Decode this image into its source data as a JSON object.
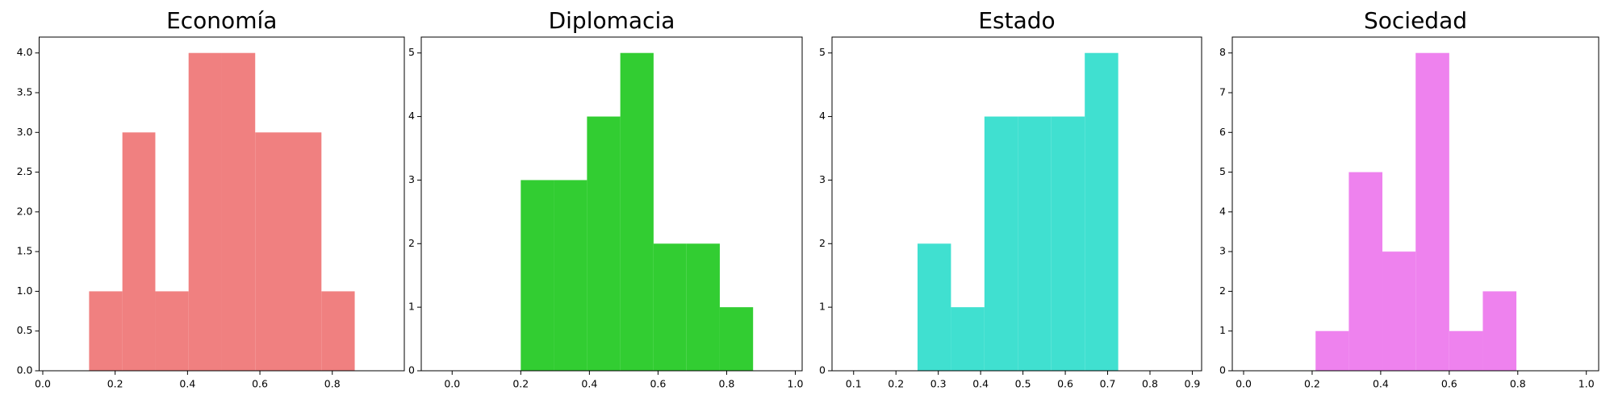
{
  "chart_data": [
    {
      "type": "histogram",
      "title": "Economía",
      "color": "#f08080",
      "bins": [
        0.128,
        0.22,
        0.311,
        0.403,
        0.495,
        0.587,
        0.679,
        0.77,
        0.862
      ],
      "values": [
        1,
        3,
        1,
        4,
        4,
        3,
        3,
        1
      ],
      "xlim": [
        -0.01,
        0.999
      ],
      "ylim": [
        0,
        4.2
      ],
      "xticks": [
        {
          "value": 0,
          "label": "0.0"
        },
        0.2,
        0.4,
        0.6,
        0.8
      ],
      "yticks": [
        {
          "value": 0,
          "label": "0.0"
        },
        0.5,
        {
          "value": 1,
          "label": "1.0"
        },
        1.5,
        {
          "value": 2,
          "label": "2.0"
        },
        2.5,
        {
          "value": 3,
          "label": "3.0"
        },
        3.5,
        {
          "value": 4,
          "label": "4.0"
        }
      ]
    },
    {
      "type": "histogram",
      "title": "Diplomacia",
      "color": "#32cd32",
      "bins": [
        0.2,
        0.297,
        0.393,
        0.49,
        0.587,
        0.683,
        0.78,
        0.877
      ],
      "values": [
        3,
        3,
        4,
        5,
        2,
        2,
        1
      ],
      "xlim": [
        -0.09,
        1.02
      ],
      "ylim": [
        0,
        5.25
      ],
      "xticks": [
        {
          "value": 0,
          "label": "0.0"
        },
        0.2,
        0.4,
        0.6,
        0.8,
        {
          "value": 1,
          "label": "1.0"
        }
      ],
      "yticks": [
        0,
        1,
        2,
        3,
        4,
        5
      ]
    },
    {
      "type": "histogram",
      "title": "Estado",
      "color": "#40e0d0",
      "bins": [
        0.251,
        0.33,
        0.409,
        0.488,
        0.567,
        0.646,
        0.725
      ],
      "values": [
        2,
        1,
        4,
        4,
        4,
        5
      ],
      "xlim": [
        0.049,
        0.922
      ],
      "ylim": [
        0,
        5.25
      ],
      "xticks": [
        0.1,
        0.2,
        0.3,
        0.4,
        0.5,
        0.6,
        0.7,
        0.8,
        0.9
      ],
      "yticks": [
        0,
        1,
        2,
        3,
        4,
        5
      ]
    },
    {
      "type": "histogram",
      "title": "Sociedad",
      "color": "#ee82ee",
      "bins": [
        0.21,
        0.307,
        0.405,
        0.502,
        0.6,
        0.698,
        0.796
      ],
      "values": [
        1,
        5,
        3,
        8,
        1,
        2
      ],
      "xlim": [
        -0.033,
        1.036
      ],
      "ylim": [
        0,
        8.4
      ],
      "xticks": [
        {
          "value": 0,
          "label": "0.0"
        },
        0.2,
        0.4,
        0.6,
        0.8,
        {
          "value": 1,
          "label": "1.0"
        }
      ],
      "yticks": [
        0,
        1,
        2,
        3,
        4,
        5,
        6,
        7,
        8
      ]
    }
  ]
}
